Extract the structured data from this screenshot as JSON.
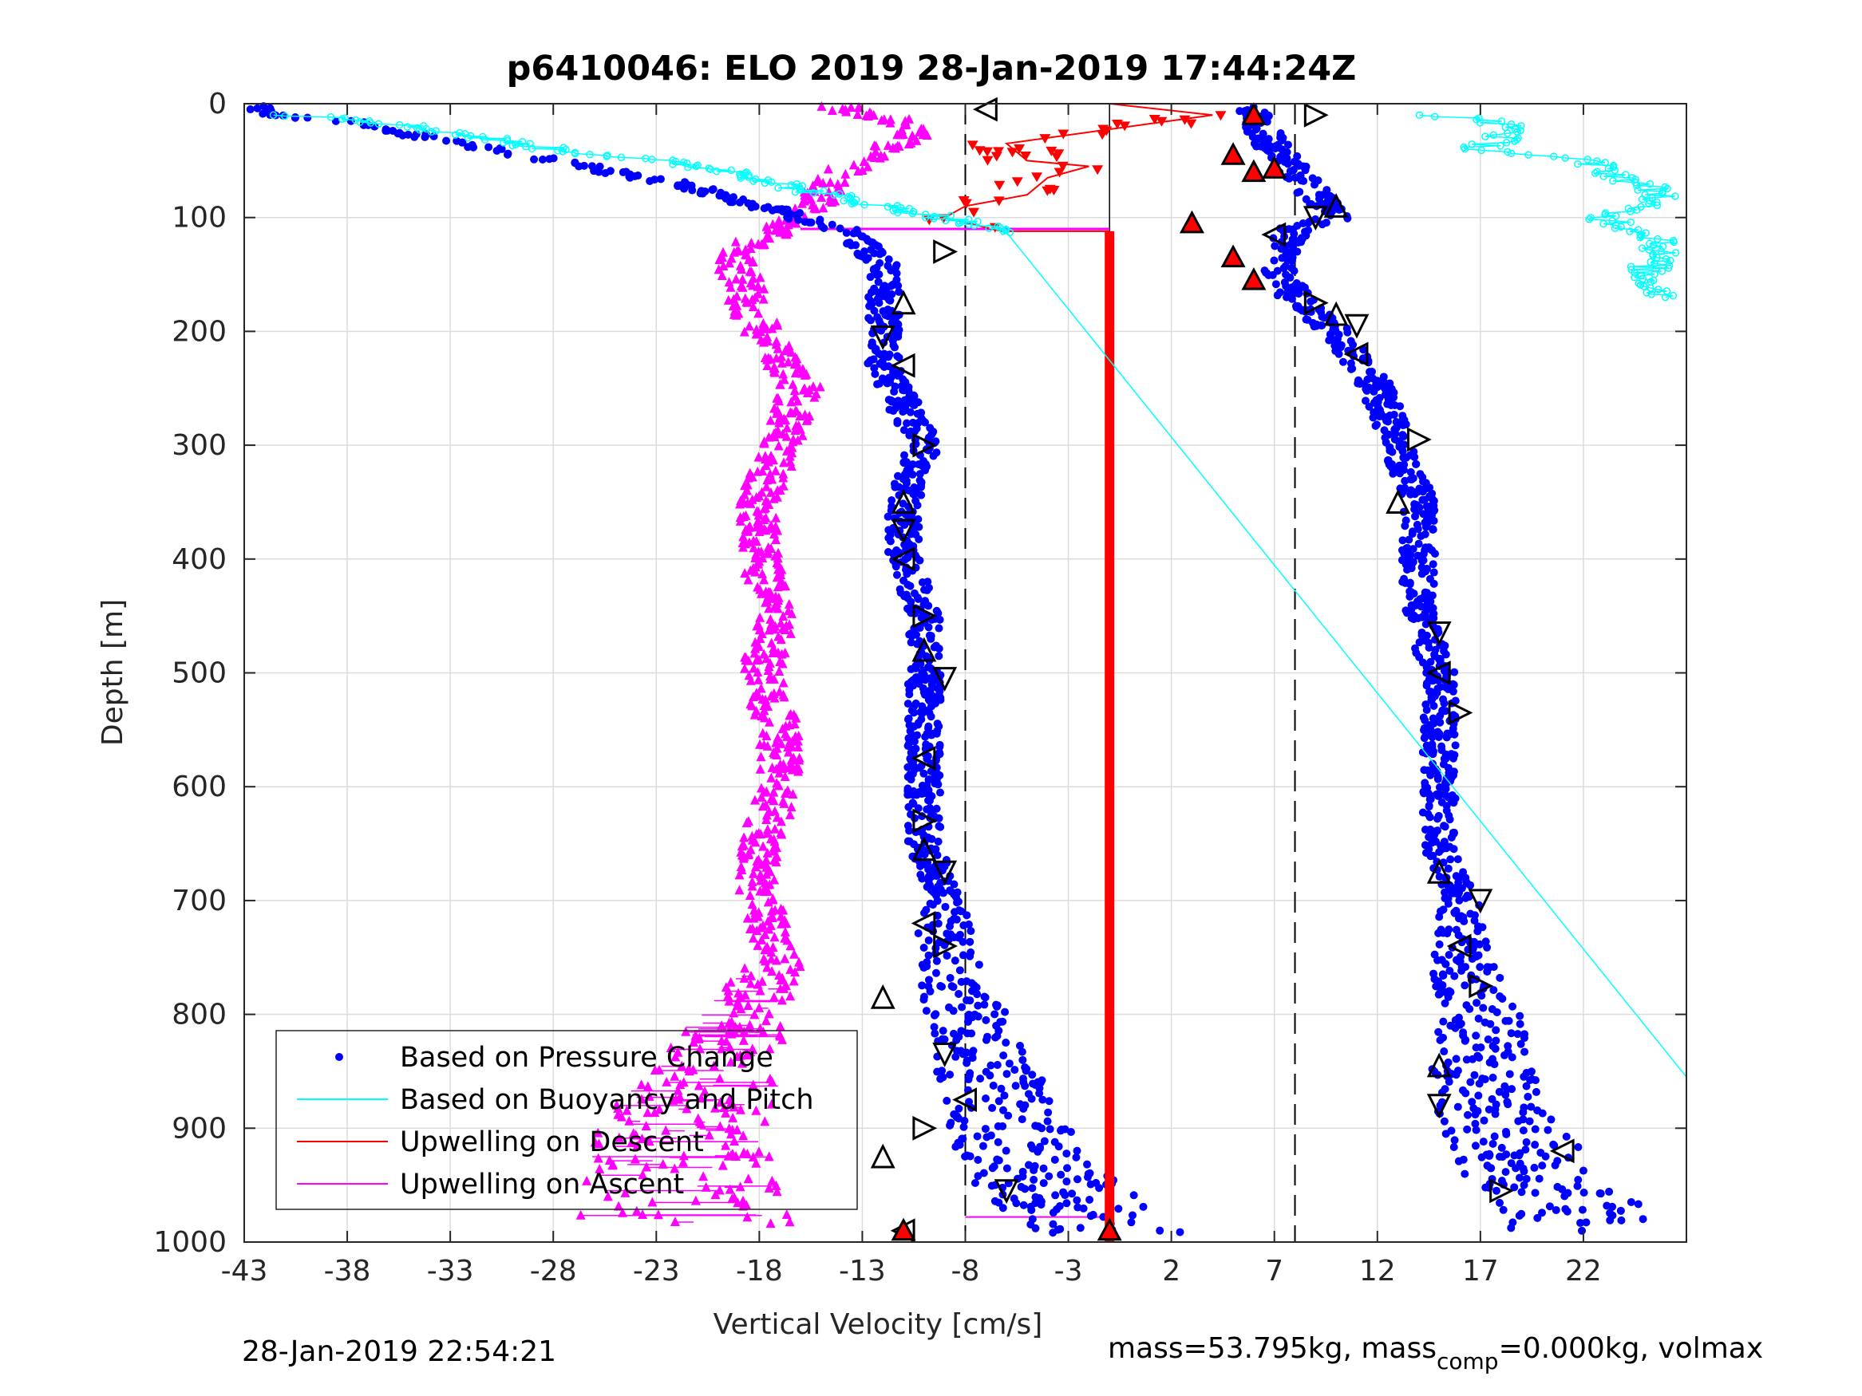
{
  "chart_data": {
    "type": "scatter",
    "title": "p6410046: ELO 2019 28-Jan-2019 17:44:24Z",
    "xlabel": "Vertical Velocity [cm/s]",
    "ylabel": "Depth [m]",
    "xlim": [
      -43,
      27
    ],
    "ylim": [
      0,
      1000
    ],
    "y_reversed": true,
    "xticks": [
      "-43",
      "-38",
      "-33",
      "-28",
      "-23",
      "-18",
      "-13",
      "-8",
      "-3",
      "2",
      "7",
      "12",
      "17",
      "22"
    ],
    "yticks": [
      "0",
      "100",
      "200",
      "300",
      "400",
      "500",
      "600",
      "700",
      "800",
      "900",
      "1000"
    ],
    "grid": true,
    "legend_position": "bottom-left",
    "reference_lines": {
      "dashed_x": [
        -8,
        8
      ],
      "solid_x": [
        -1
      ]
    },
    "series": [
      {
        "name": "Based on Pressure Change",
        "color": "#0000ff",
        "marker": "dot",
        "descent_profile": [
          [
            -42,
            10
          ],
          [
            -38,
            15
          ],
          [
            -34,
            30
          ],
          [
            -28,
            50
          ],
          [
            -22,
            70
          ],
          [
            -18,
            90
          ],
          [
            -14,
            110
          ],
          [
            -12,
            140
          ],
          [
            -12,
            180
          ],
          [
            -12,
            230
          ],
          [
            -10,
            300
          ],
          [
            -11,
            350
          ],
          [
            -11,
            400
          ],
          [
            -10,
            450
          ],
          [
            -10,
            500
          ],
          [
            -10,
            550
          ],
          [
            -10,
            600
          ],
          [
            -10,
            650
          ],
          [
            -9,
            700
          ],
          [
            -9,
            750
          ],
          [
            -8,
            800
          ],
          [
            -7,
            850
          ],
          [
            -6,
            900
          ],
          [
            -4,
            950
          ],
          [
            -1,
            990
          ]
        ],
        "ascent_profile": [
          [
            6,
            10
          ],
          [
            7,
            40
          ],
          [
            8,
            60
          ],
          [
            9,
            80
          ],
          [
            10,
            100
          ],
          [
            8,
            110
          ],
          [
            7,
            140
          ],
          [
            8,
            170
          ],
          [
            10,
            200
          ],
          [
            12,
            250
          ],
          [
            13,
            300
          ],
          [
            14,
            350
          ],
          [
            14,
            400
          ],
          [
            14,
            450
          ],
          [
            15,
            500
          ],
          [
            15,
            550
          ],
          [
            15,
            600
          ],
          [
            15,
            650
          ],
          [
            16,
            700
          ],
          [
            16,
            750
          ],
          [
            17,
            800
          ],
          [
            17,
            850
          ],
          [
            18,
            900
          ],
          [
            20,
            950
          ],
          [
            22,
            980
          ]
        ]
      },
      {
        "name": "Based on Buoyancy and Pitch",
        "color": "#00ffff",
        "marker": "line-circle",
        "descent_near_surface": [
          [
            -42,
            10
          ],
          [
            -38,
            12
          ],
          [
            -33,
            25
          ],
          [
            -28,
            40
          ],
          [
            -23,
            50
          ],
          [
            -19,
            60
          ],
          [
            -16,
            75
          ],
          [
            -12,
            90
          ],
          [
            -9,
            100
          ],
          [
            -6,
            113
          ]
        ],
        "model_line": [
          [
            -6,
            113
          ],
          [
            27,
            855
          ]
        ],
        "ascent_near_surface": [
          [
            15,
            10
          ],
          [
            19,
            20
          ],
          [
            17,
            40
          ],
          [
            22,
            50
          ],
          [
            26,
            80
          ],
          [
            23,
            100
          ],
          [
            26,
            120
          ],
          [
            25,
            150
          ],
          [
            26,
            170
          ]
        ]
      },
      {
        "name": "Upwelling on Descent",
        "color": "#ff0000",
        "marker": "triangle-down",
        "values": [
          [
            -1,
            0
          ],
          [
            4,
            10
          ],
          [
            2,
            15
          ],
          [
            -6,
            35
          ],
          [
            -5,
            50
          ],
          [
            -2,
            55
          ],
          [
            -4,
            65
          ],
          [
            -5,
            80
          ],
          [
            -8,
            90
          ],
          [
            -9,
            100
          ],
          [
            -6,
            113
          ]
        ]
      },
      {
        "name": "Upwelling on Ascent",
        "color": "#ff00ff",
        "marker": "triangle-up",
        "profile": [
          [
            -14,
            5
          ],
          [
            -10,
            20
          ],
          [
            -12,
            40
          ],
          [
            -14,
            60
          ],
          [
            -15,
            80
          ],
          [
            -16,
            100
          ],
          [
            -19,
            130
          ],
          [
            -19,
            150
          ],
          [
            -18,
            200
          ],
          [
            -16,
            250
          ],
          [
            -17,
            300
          ],
          [
            -18,
            350
          ],
          [
            -18,
            400
          ],
          [
            -17,
            450
          ],
          [
            -18,
            500
          ],
          [
            -17,
            550
          ],
          [
            -17,
            600
          ],
          [
            -18,
            650
          ],
          [
            -18,
            700
          ],
          [
            -17,
            750
          ],
          [
            -19,
            800
          ],
          [
            -20,
            850
          ],
          [
            -22,
            900
          ],
          [
            -22,
            950
          ],
          [
            -22,
            980
          ]
        ]
      }
    ],
    "sample_markers": {
      "descent": [
        [
          -7,
          5
        ],
        [
          -9,
          130
        ],
        [
          -11,
          175
        ],
        [
          -12,
          205
        ],
        [
          -11,
          230
        ],
        [
          -10,
          300
        ],
        [
          -11,
          350
        ],
        [
          -11,
          375
        ],
        [
          -11,
          400
        ],
        [
          -10,
          450
        ],
        [
          -10,
          480
        ],
        [
          -9,
          505
        ],
        [
          -10,
          575
        ],
        [
          -10,
          630
        ],
        [
          -10,
          655
        ],
        [
          -9,
          675
        ],
        [
          -10,
          720
        ],
        [
          -9,
          740
        ],
        [
          -12,
          785
        ],
        [
          -9,
          835
        ],
        [
          -8,
          875
        ],
        [
          -10,
          900
        ],
        [
          -12,
          925
        ],
        [
          -6,
          955
        ],
        [
          -11,
          990
        ]
      ],
      "ascent": [
        [
          9,
          10
        ],
        [
          10,
          90
        ],
        [
          9,
          100
        ],
        [
          7,
          115
        ],
        [
          9,
          175
        ],
        [
          10,
          185
        ],
        [
          11,
          195
        ],
        [
          11,
          220
        ],
        [
          14,
          295
        ],
        [
          13,
          350
        ],
        [
          15,
          465
        ],
        [
          15,
          500
        ],
        [
          16,
          535
        ],
        [
          15,
          675
        ],
        [
          17,
          700
        ],
        [
          16,
          740
        ],
        [
          17,
          775
        ],
        [
          15,
          845
        ],
        [
          15,
          880
        ],
        [
          21,
          920
        ],
        [
          18,
          955
        ]
      ]
    },
    "sample_markers_red": [
      [
        6,
        10
      ],
      [
        3,
        105
      ],
      [
        5,
        45
      ],
      [
        6,
        60
      ],
      [
        7,
        57
      ],
      [
        5,
        135
      ],
      [
        6,
        155
      ],
      [
        -1,
        990
      ],
      [
        -11,
        990
      ]
    ]
  },
  "footer": {
    "timestamp": "28-Jan-2019 22:54:21",
    "mass_text_1": "mass=53.795kg, mass",
    "mass_sub": "comp",
    "mass_text_2": "=0.000kg, volmax"
  }
}
